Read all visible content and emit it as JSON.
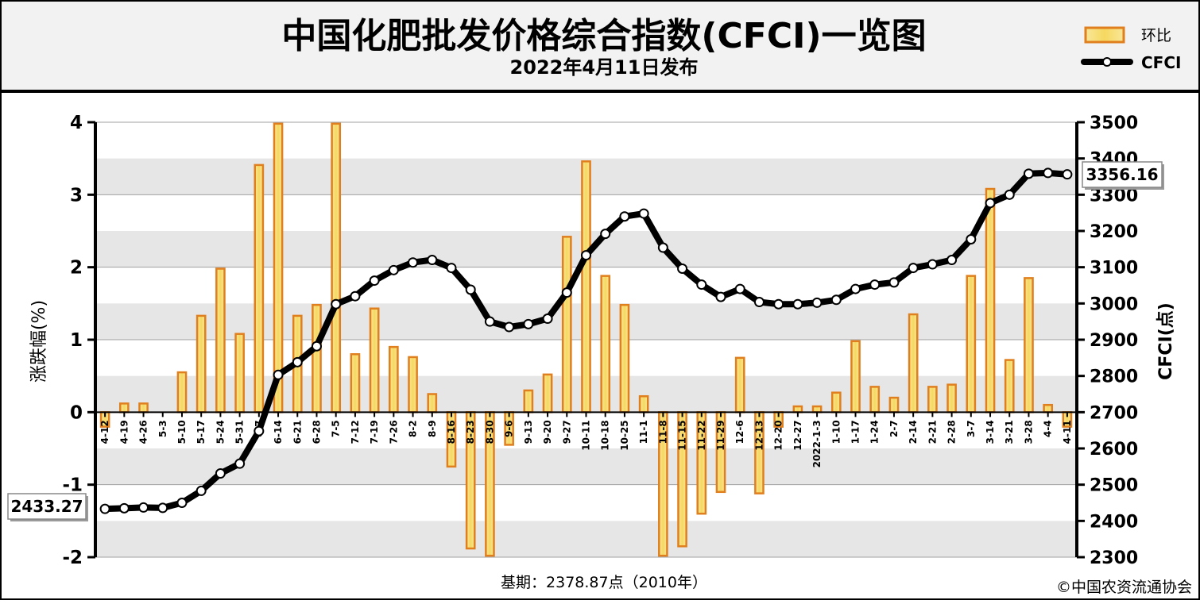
{
  "header": {
    "title": "中国化肥批发价格综合指数(CFCI)一览图",
    "subtitle": "2022年4月11日发布"
  },
  "footer": {
    "base_note": "基期：2378.87点（2010年）",
    "copyright": "©中国农资流通协会"
  },
  "colors": {
    "bar_fill": "#f6d860",
    "bar_stroke": "#e07f1e",
    "line": "#000000",
    "marker_fill": "#ffffff",
    "plot_band": "#e6e6e6",
    "header_bg": "#f2f2f2"
  },
  "chart_data": {
    "type": "bar+line",
    "categories": [
      "4-12",
      "4-19",
      "4-26",
      "5-3",
      "5-10",
      "5-17",
      "5-24",
      "5-31",
      "6-7",
      "6-14",
      "6-21",
      "6-28",
      "7-5",
      "7-12",
      "7-19",
      "7-26",
      "8-2",
      "8-9",
      "8-16",
      "8-23",
      "8-30",
      "9-6",
      "9-13",
      "9-20",
      "9-27",
      "10-11",
      "10-18",
      "10-25",
      "11-1",
      "11-8",
      "11-15",
      "11-22",
      "11-29",
      "12-6",
      "12-13",
      "12-20",
      "12-27",
      "2022-1-3",
      "1-10",
      "1-17",
      "1-24",
      "2-7",
      "2-14",
      "2-21",
      "2-28",
      "3-7",
      "3-14",
      "3-21",
      "3-28",
      "4-4",
      "4-11"
    ],
    "series": [
      {
        "name": "环比",
        "type": "bar",
        "axis": "left",
        "values": [
          -0.2,
          0.12,
          0.12,
          0,
          0.55,
          1.33,
          1.98,
          1.08,
          3.41,
          3.98,
          1.33,
          1.48,
          3.98,
          0.8,
          1.43,
          0.9,
          0.76,
          0.25,
          -0.75,
          -1.88,
          -1.98,
          -0.45,
          0.3,
          0.52,
          2.42,
          3.46,
          1.88,
          1.48,
          0.22,
          -1.98,
          -1.85,
          -1.4,
          -1.1,
          0.75,
          -1.12,
          -0.2,
          0.08,
          0.08,
          0.27,
          0.98,
          0.35,
          0.2,
          1.35,
          0.35,
          0.38,
          1.88,
          3.08,
          0.72,
          1.85,
          0.1,
          -0.2
        ]
      },
      {
        "name": "CFCI",
        "type": "line",
        "axis": "right",
        "values": [
          2433.27,
          2435,
          2437,
          2436,
          2450,
          2483,
          2531,
          2558,
          2648,
          2803,
          2838,
          2882,
          2998,
          3020,
          3063,
          3092,
          3113,
          3120,
          3098,
          3038,
          2950,
          2935,
          2943,
          2958,
          3030,
          3133,
          3192,
          3240,
          3248,
          3154,
          3096,
          3052,
          3018,
          3040,
          3004,
          2998,
          2998,
          3002,
          3010,
          3040,
          3052,
          3058,
          3098,
          3108,
          3120,
          3177,
          3277,
          3300,
          3358,
          3360,
          3356.16
        ]
      }
    ],
    "ylabel": "涨跌幅(%)",
    "ylabel_right": "CFCI(点)",
    "ylim": [
      -2,
      4
    ],
    "ylim_right": [
      2300,
      3500
    ],
    "yticks_left": [
      "-2",
      "-1",
      "0",
      "1",
      "2",
      "3",
      "4"
    ],
    "yticks_right": [
      "2300",
      "2400",
      "2500",
      "2600",
      "2700",
      "2800",
      "2900",
      "3000",
      "3100",
      "3200",
      "3300",
      "3400",
      "3500"
    ],
    "grid": true,
    "legend_position": "top-right",
    "annotations": {
      "start_value": "2433.27",
      "end_value": "3356.16"
    }
  }
}
